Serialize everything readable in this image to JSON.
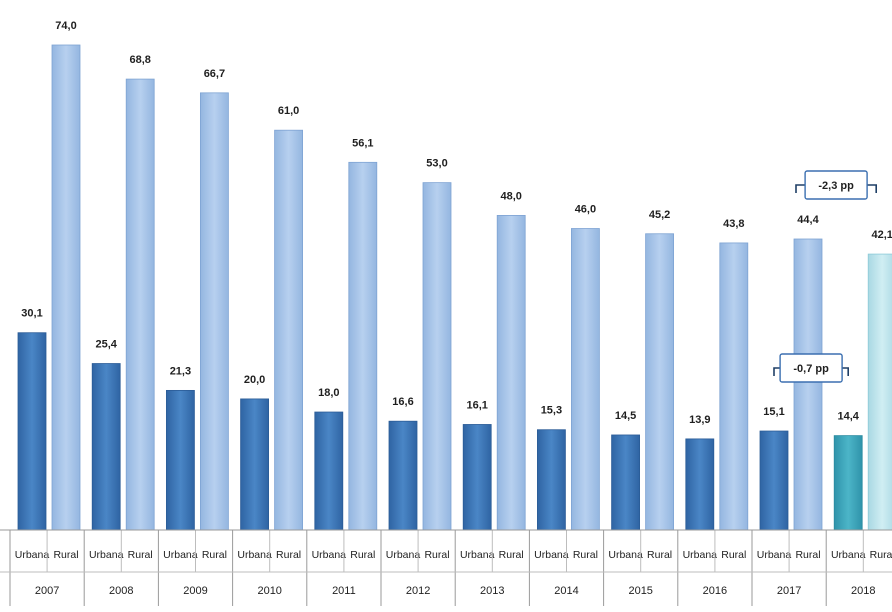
{
  "chart_data": {
    "type": "bar",
    "x": [
      "2007",
      "2008",
      "2009",
      "2010",
      "2011",
      "2012",
      "2013",
      "2014",
      "2015",
      "2016",
      "2017",
      "2018"
    ],
    "categories": [
      "Urbana",
      "Rural"
    ],
    "series": [
      {
        "name": "Urbana",
        "values": [
          30.1,
          25.4,
          21.3,
          20.0,
          18.0,
          16.6,
          16.1,
          15.3,
          14.5,
          13.9,
          15.1,
          14.4
        ]
      },
      {
        "name": "Rural",
        "values": [
          74.0,
          68.8,
          66.7,
          61.0,
          56.1,
          53.0,
          48.0,
          46.0,
          45.2,
          43.8,
          44.4,
          42.1
        ]
      }
    ],
    "value_labels": {
      "Urbana": [
        "30,1",
        "25,4",
        "21,3",
        "20,0",
        "18,0",
        "16,6",
        "16,1",
        "15,3",
        "14,5",
        "13,9",
        "15,1",
        "14,4"
      ],
      "Rural": [
        "74,0",
        "68,8",
        "66,7",
        "61,0",
        "56,1",
        "53,0",
        "48,0",
        "46,0",
        "45,2",
        "43,8",
        "44,4",
        "42,1"
      ]
    },
    "ylim": [
      0,
      80
    ],
    "grid": false,
    "annotations": [
      {
        "text": "-0,7 pp",
        "between": [
          "2017 Urbana",
          "2018 Urbana"
        ]
      },
      {
        "text": "-2,3 pp",
        "between": [
          "2017 Rural",
          "2018 Rural"
        ]
      }
    ],
    "colors": {
      "urbana": "#3f7bbd",
      "rural": "#a9c6ea",
      "urbana_highlight": "#3aa3b8",
      "rural_highlight": "#bfe3ea"
    }
  }
}
